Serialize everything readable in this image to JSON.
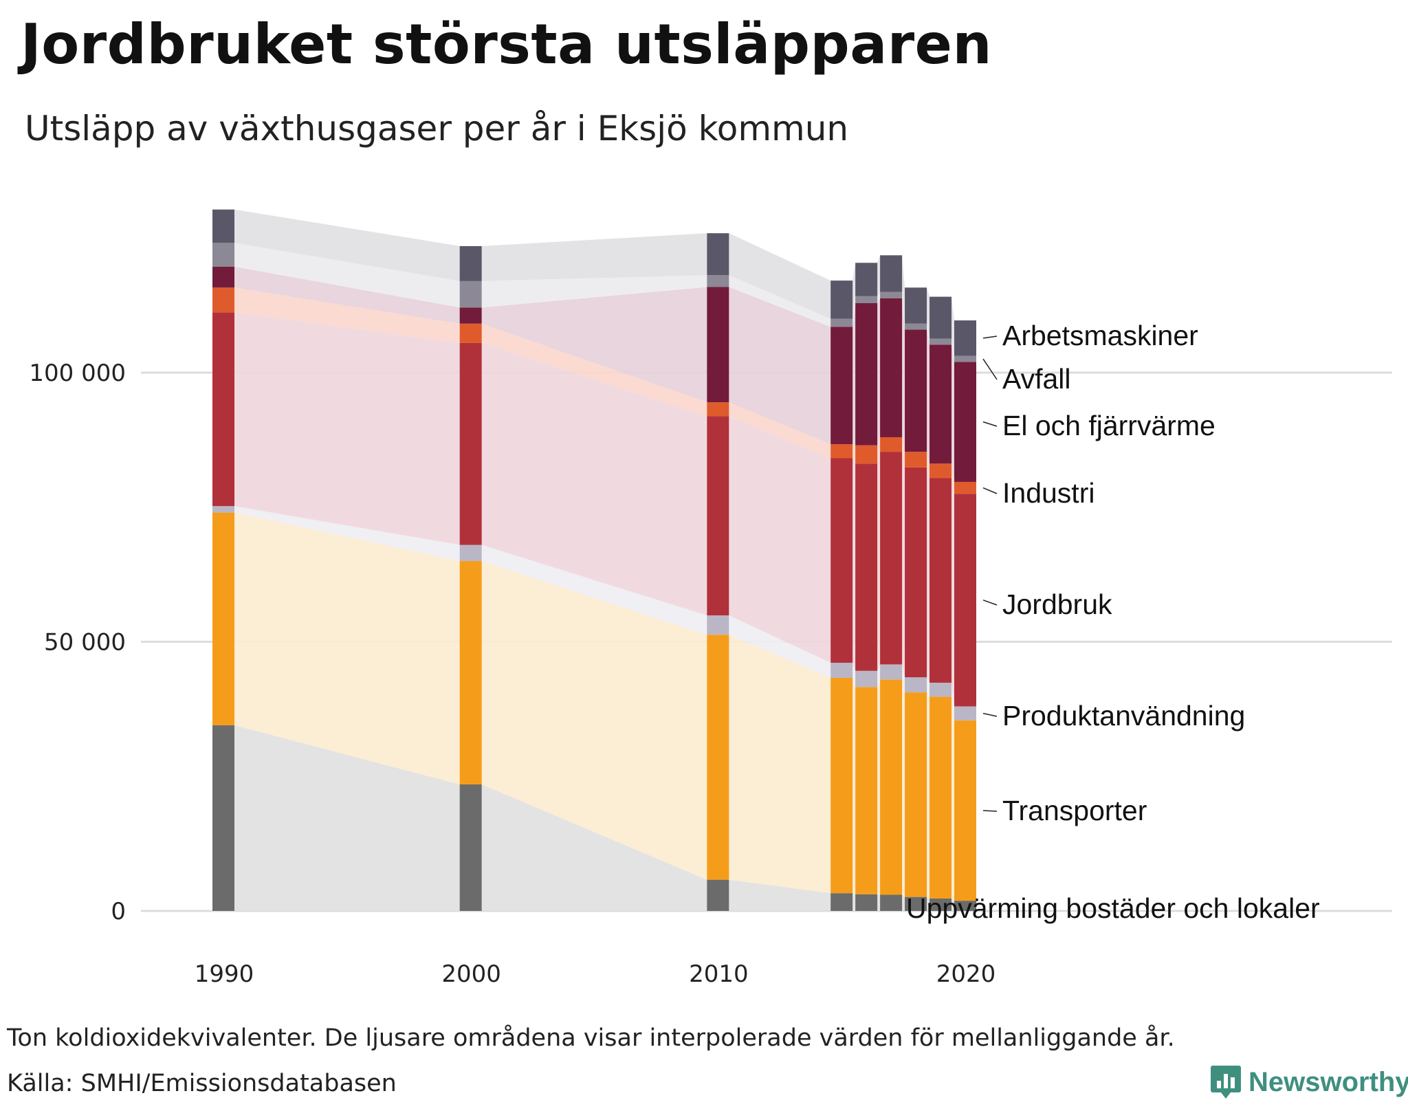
{
  "title": "Jordbruket största utsläpparen",
  "subtitle": "Utsläpp av växthusgaser per år i Eksjö kommun",
  "note": "Ton koldioxidekvivalenter. De ljusare områdena visar interpolerade värden för mellanliggande år.",
  "source": "Källa: SMHI/Emissionsdatabasen",
  "brand": "Newsworthy",
  "chart_data": {
    "type": "bar",
    "stacked": true,
    "title": "Jordbruket största utsläpparen",
    "subtitle": "Utsläpp av växthusgaser per år i Eksjö kommun",
    "xlabel": "",
    "ylabel": "Ton koldioxidekvivalenter",
    "ylim": [
      0,
      130000
    ],
    "y_ticks": [
      0,
      50000,
      100000
    ],
    "y_tick_labels": [
      "0",
      "50 000",
      "100 000"
    ],
    "x_ticks": [
      1990,
      2000,
      2010,
      2020
    ],
    "x_tick_labels": [
      "1990",
      "2000",
      "2010",
      "2020"
    ],
    "grid": true,
    "interpolated_areas": true,
    "years": [
      1990,
      2000,
      2010,
      2015,
      2016,
      2017,
      2018,
      2019,
      2020
    ],
    "series": [
      {
        "name": "Uppvärming bostäder och lokaler",
        "color": "#6b6b6b",
        "area_color": "#e0e0e0",
        "values": [
          34500,
          23500,
          5800,
          3300,
          3100,
          3000,
          2600,
          2300,
          1900
        ]
      },
      {
        "name": "Transporter",
        "color": "#f59d1a",
        "area_color": "#fcebd0",
        "values": [
          39500,
          41500,
          45500,
          40000,
          38500,
          40000,
          38000,
          37500,
          33500
        ]
      },
      {
        "name": "Produktanvändning",
        "color": "#bab6c5",
        "area_color": "#eeedf2",
        "values": [
          1200,
          3000,
          3600,
          2800,
          3000,
          2800,
          2800,
          2600,
          2600
        ]
      },
      {
        "name": "Jordbruk",
        "color": "#b1313a",
        "area_color": "#efd6dc",
        "values": [
          36000,
          37500,
          37000,
          38000,
          38500,
          39500,
          39000,
          38000,
          39500
        ]
      },
      {
        "name": "Industri",
        "color": "#e05b2b",
        "area_color": "#fad6cc",
        "values": [
          4600,
          3600,
          2600,
          2600,
          3400,
          2700,
          2900,
          2700,
          2200
        ]
      },
      {
        "name": "El och fjärrvärme",
        "color": "#731b3a",
        "area_color": "#e6d0d9",
        "values": [
          3900,
          3000,
          21400,
          21800,
          26400,
          25800,
          22700,
          22100,
          22300
        ]
      },
      {
        "name": "Avfall",
        "color": "#8c8896",
        "area_color": "#ebebed",
        "values": [
          4400,
          4900,
          2200,
          1500,
          1300,
          1200,
          1100,
          1100,
          1100
        ]
      },
      {
        "name": "Arbetsmaskiner",
        "color": "#5a5868",
        "area_color": "#e0dfe2",
        "values": [
          6200,
          6500,
          7800,
          7100,
          6200,
          6800,
          6700,
          7800,
          6600
        ]
      }
    ],
    "legend_placement": "right, inline labels"
  }
}
